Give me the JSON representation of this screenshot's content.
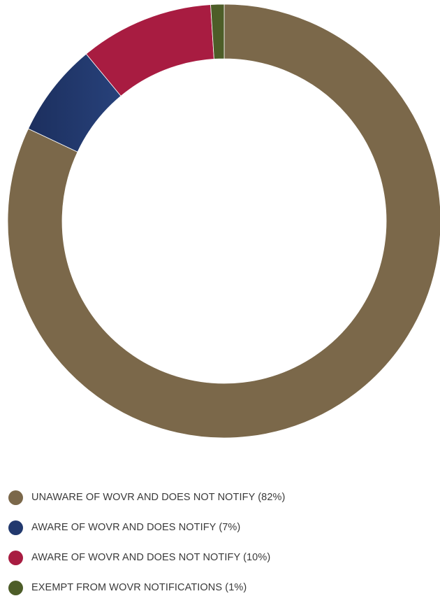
{
  "chart_data": {
    "type": "pie",
    "donut": true,
    "legend_position": "bottom",
    "categories": [
      "UNAWARE OF WOVR AND DOES NOT NOTIFY (82%)",
      "AWARE OF WOVR AND DOES NOTIFY (7%)",
      "AWARE OF WOVR AND DOES NOT NOTIFY (10%)",
      "EXEMPT FROM WOVR NOTIFICATIONS (1%)"
    ],
    "values": [
      82,
      7,
      10,
      1
    ],
    "colors": [
      "#7b684a",
      "#22396e",
      "#a81c41",
      "#4d5d28"
    ]
  }
}
